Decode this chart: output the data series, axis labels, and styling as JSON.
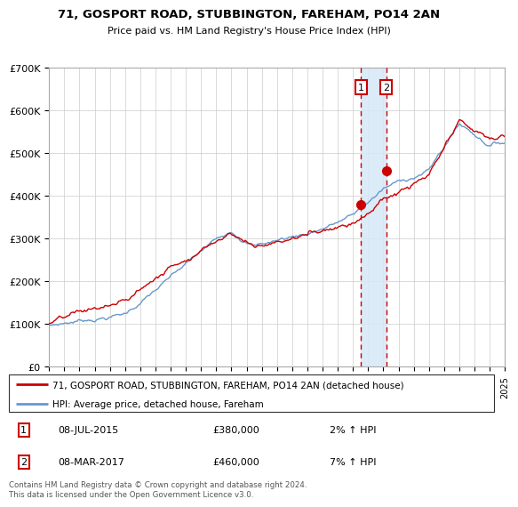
{
  "title": "71, GOSPORT ROAD, STUBBINGTON, FAREHAM, PO14 2AN",
  "subtitle": "Price paid vs. HM Land Registry's House Price Index (HPI)",
  "legend_line1": "71, GOSPORT ROAD, STUBBINGTON, FAREHAM, PO14 2AN (detached house)",
  "legend_line2": "HPI: Average price, detached house, Fareham",
  "transaction1_date": "08-JUL-2015",
  "transaction1_price": 380000,
  "transaction1_pct": "2%",
  "transaction2_date": "08-MAR-2017",
  "transaction2_price": 460000,
  "transaction2_pct": "7%",
  "footer": "Contains HM Land Registry data © Crown copyright and database right 2024.\nThis data is licensed under the Open Government Licence v3.0.",
  "ylim": [
    0,
    700000
  ],
  "yticks": [
    0,
    100000,
    200000,
    300000,
    400000,
    500000,
    600000,
    700000
  ],
  "xlim_start": 1995.0,
  "xlim_end": 2025.0,
  "line_color_property": "#cc0000",
  "line_color_hpi": "#6699cc",
  "vline_color": "#cc0000",
  "shade_color": "#d6e8f7",
  "transaction1_x": 2015.52,
  "transaction2_x": 2017.18,
  "transaction1_y": 380000,
  "transaction2_y": 460000,
  "background_color": "#ffffff",
  "grid_color": "#cccccc"
}
